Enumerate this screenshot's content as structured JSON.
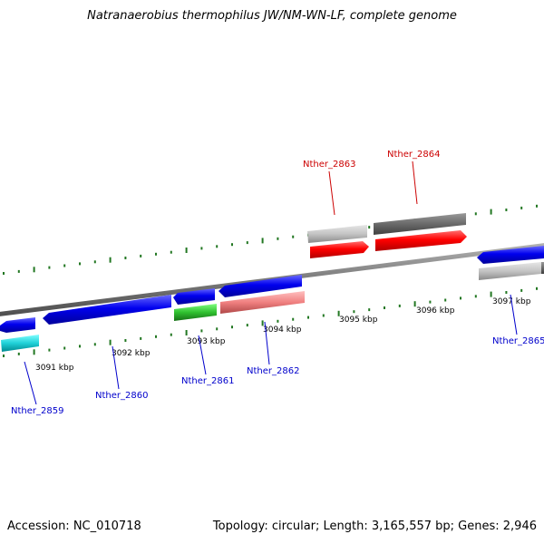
{
  "header": {
    "title": "Natranaerobius thermophilus JW/NM-WN-LF, complete genome"
  },
  "footer": {
    "accession": "Accession: NC_010718",
    "summary": "Topology: circular; Length: 3,165,557 bp; Genes: 2,946"
  },
  "ticks": [
    "3091 kbp",
    "3092 kbp",
    "3093 kbp",
    "3094 kbp",
    "3095 kbp",
    "3096 kbp",
    "3097 kbp"
  ],
  "genes": [
    {
      "id": "Nther_2859",
      "strand": "reverse",
      "color": "#0000cc"
    },
    {
      "id": "Nther_2860",
      "strand": "reverse",
      "color": "#0000cc"
    },
    {
      "id": "Nther_2861",
      "strand": "reverse",
      "color": "#0000cc"
    },
    {
      "id": "Nther_2862",
      "strand": "reverse",
      "color": "#0000cc"
    },
    {
      "id": "Nther_2863",
      "strand": "forward",
      "color": "#cc0000"
    },
    {
      "id": "Nther_2864",
      "strand": "forward",
      "color": "#cc0000"
    },
    {
      "id": "Nther_2865",
      "strand": "reverse",
      "color": "#0000cc"
    }
  ]
}
